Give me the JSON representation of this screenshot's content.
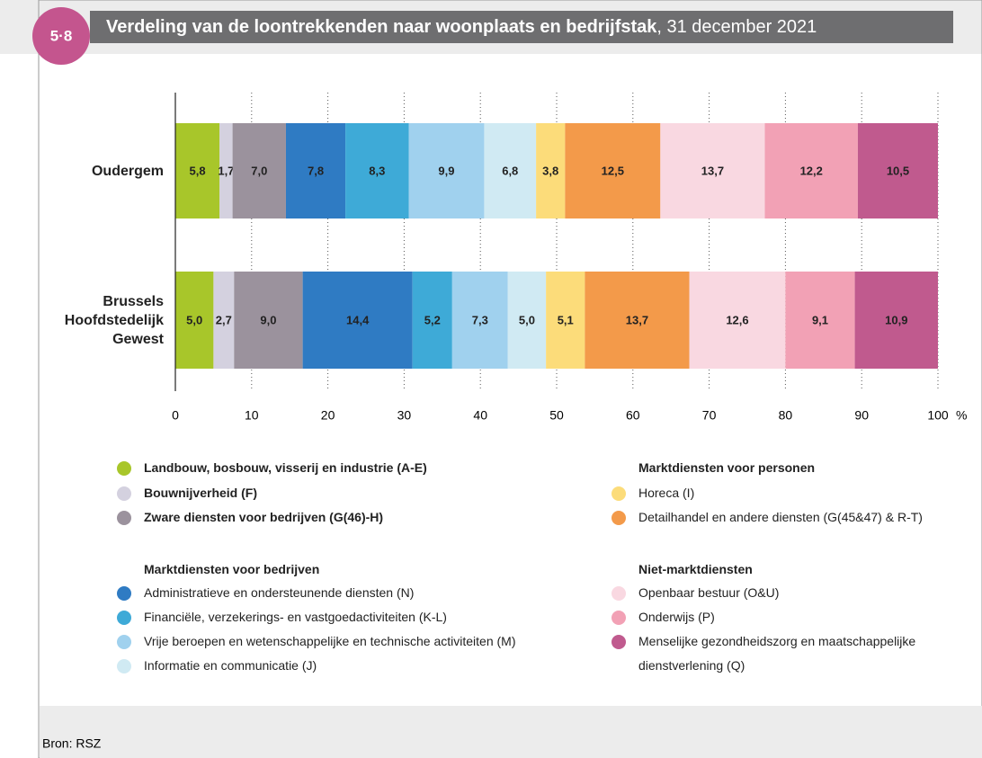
{
  "figure_number": "5·8",
  "chart_data": {
    "type": "stacked-barh",
    "title": {
      "main": "Verdeling van de loontrekkenden naar woonplaats en bedrijfstak",
      "suffix": ", 31 december 2021"
    },
    "categories": [
      "Oudergem",
      "Brussels Hoofdstedelijk Gewest"
    ],
    "xlim": [
      0,
      100
    ],
    "xticks": [
      0,
      10,
      20,
      30,
      40,
      50,
      60,
      70,
      80,
      90,
      100
    ],
    "xunit": "%",
    "grid": true,
    "legend_groups": [
      "Marktdiensten voor bedrijven",
      "Marktdiensten voor personen",
      "Niet-marktdiensten"
    ],
    "series": [
      {
        "name": "Landbouw, bosbouw, visserij en industrie (A-E)",
        "color": "#a8c62a",
        "values": [
          5.8,
          5.0
        ],
        "value_labels": [
          "5,8",
          "5,0"
        ]
      },
      {
        "name": "Bouwnijverheid (F)",
        "color": "#d4d1df",
        "values": [
          1.7,
          2.7
        ],
        "value_labels": [
          "1,7",
          "2,7"
        ]
      },
      {
        "name": "Zware diensten voor bedrijven (G(46)-H)",
        "color": "#9b929d",
        "values": [
          7.0,
          9.0
        ],
        "value_labels": [
          "7,0",
          "9,0"
        ]
      },
      {
        "name": "Administratieve en ondersteunende diensten (N)",
        "color": "#2f7bc3",
        "values": [
          7.8,
          14.4
        ],
        "value_labels": [
          "7,8",
          "14,4"
        ]
      },
      {
        "name": "Financiële, verzekerings- en vastgoedactiviteiten (K-L)",
        "color": "#3eaad7",
        "values": [
          8.3,
          5.2
        ],
        "value_labels": [
          "8,3",
          "5,2"
        ]
      },
      {
        "name": "Vrije beroepen en wetenschappelijke en technische activiteiten (M)",
        "color": "#a0d1ee",
        "values": [
          9.9,
          7.3
        ],
        "value_labels": [
          "9,9",
          "7,3"
        ]
      },
      {
        "name": "Informatie en communicatie (J)",
        "color": "#d0eaf3",
        "values": [
          6.8,
          5.0
        ],
        "value_labels": [
          "6,8",
          "5,0"
        ]
      },
      {
        "name": "Horeca (I)",
        "color": "#fcdc7a",
        "values": [
          3.8,
          5.1
        ],
        "value_labels": [
          "3,8",
          "5,1"
        ]
      },
      {
        "name": "Detailhandel en andere diensten (G(45&47) & R-T)",
        "color": "#f39a4a",
        "values": [
          12.5,
          13.7
        ],
        "value_labels": [
          "12,5",
          "13,7"
        ]
      },
      {
        "name": "Openbaar bestuur (O&U)",
        "color": "#f9d8e1",
        "values": [
          13.7,
          12.6
        ],
        "value_labels": [
          "13,7",
          "12,6"
        ]
      },
      {
        "name": "Onderwijs (P)",
        "color": "#f2a1b5",
        "values": [
          12.2,
          9.1
        ],
        "value_labels": [
          "12,2",
          "9,1"
        ]
      },
      {
        "name": "Menselijke gezondheidszorg en maatschappelijke dienstverlening (Q)",
        "color": "#c05a8e",
        "values": [
          10.5,
          10.9
        ],
        "value_labels": [
          "10,5",
          "10,9"
        ]
      }
    ]
  },
  "source": "Bron: RSZ"
}
